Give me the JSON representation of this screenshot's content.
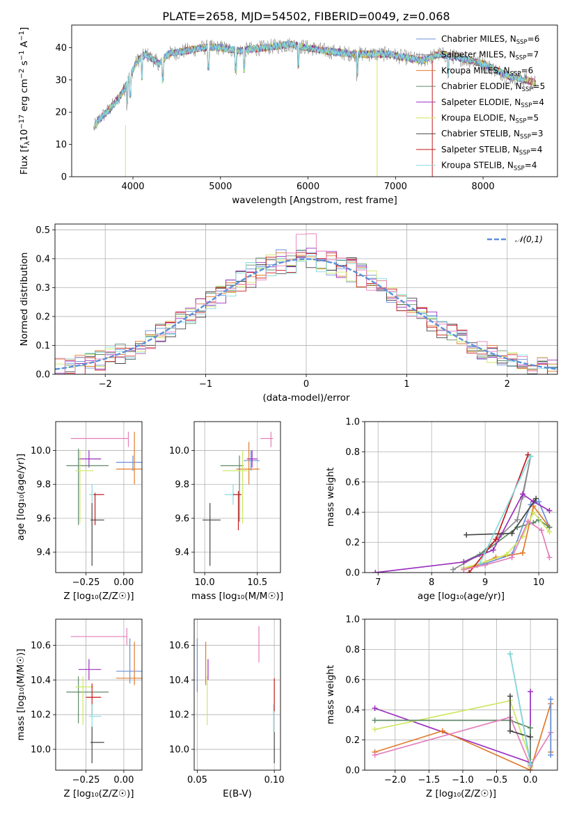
{
  "title": "PLATE=2658, MJD=54502, FIBERID=0049, z=0.068",
  "colors": {
    "Chabrier MILES": "#6a8fd8",
    "Salpeter MILES": "#8a8a8a",
    "Kroupa MILES": "#e07b2a",
    "Chabrier ELODIE": "#5f8a6a",
    "Salpeter ELODIE": "#9a2fbd",
    "Kroupa ELODIE": "#cde860",
    "Chabrier STELIB": "#444444",
    "Salpeter STELIB": "#c41a1a",
    "Kroupa STELIB": "#84dce0",
    "Gaussian": "#5b8fd9",
    "Extra": "#e37fb9"
  },
  "chart_data": [
    {
      "type": "line",
      "title": "PLATE=2658, MJD=54502, FIBERID=0049, z=0.068",
      "xlabel": "wavelength [Angstrom, rest frame]",
      "ylabel_parts": [
        "Flux [f",
        "λ",
        "10",
        "−17",
        " erg cm",
        "−2",
        " s",
        "−1",
        " A",
        "−1",
        "]"
      ],
      "xlim": [
        3300,
        8850
      ],
      "ylim": [
        0,
        47
      ],
      "xticks": [
        "4000",
        "5000",
        "6000",
        "7000",
        "8000"
      ],
      "yticks": [
        "0",
        "10",
        "20",
        "30",
        "40"
      ],
      "grid": false,
      "legend_position": "top-right",
      "spectrum_knots": [
        [
          3550,
          15
        ],
        [
          3620,
          18
        ],
        [
          3700,
          20
        ],
        [
          3800,
          23
        ],
        [
          3900,
          27
        ],
        [
          3960,
          31
        ],
        [
          4050,
          36
        ],
        [
          4150,
          38
        ],
        [
          4300,
          35
        ],
        [
          4400,
          38
        ],
        [
          4600,
          39
        ],
        [
          4800,
          40
        ],
        [
          5000,
          40
        ],
        [
          5200,
          39
        ],
        [
          5500,
          40
        ],
        [
          5800,
          41
        ],
        [
          6000,
          40
        ],
        [
          6200,
          39
        ],
        [
          6500,
          38
        ],
        [
          6700,
          38
        ],
        [
          6900,
          38
        ],
        [
          7100,
          37
        ],
        [
          7300,
          36
        ],
        [
          7500,
          38
        ],
        [
          7700,
          37
        ],
        [
          8000,
          35
        ],
        [
          8300,
          31
        ],
        [
          8500,
          30
        ],
        [
          8600,
          29
        ]
      ],
      "legend": [
        {
          "base": "Chabrier MILES, N",
          "sub": "SSP",
          "suffix": "=6"
        },
        {
          "base": "Salpeter MILES, N",
          "sub": "SSP",
          "suffix": "=7"
        },
        {
          "base": "Kroupa MILES, N",
          "sub": "SSP",
          "suffix": "=6"
        },
        {
          "base": "Chabrier ELODIE, N",
          "sub": "SSP",
          "suffix": "=5"
        },
        {
          "base": "Salpeter ELODIE, N",
          "sub": "SSP",
          "suffix": "=4"
        },
        {
          "base": "Kroupa ELODIE, N",
          "sub": "SSP",
          "suffix": "=5"
        },
        {
          "base": "Chabrier STELIB, N",
          "sub": "SSP",
          "suffix": "=3"
        },
        {
          "base": "Salpeter STELIB, N",
          "sub": "SSP",
          "suffix": "=4"
        },
        {
          "base": "Kroupa STELIB, N",
          "sub": "SSP",
          "suffix": "=4"
        }
      ]
    },
    {
      "type": "line",
      "xlabel": "(data-model)/error",
      "ylabel": "Normed distribution",
      "xlim": [
        -2.5,
        2.5
      ],
      "ylim": [
        0,
        0.52
      ],
      "xticks": [
        "−2",
        "−1",
        "0",
        "1",
        "2"
      ],
      "yticks": [
        "0.0",
        "0.1",
        "0.2",
        "0.3",
        "0.4",
        "0.5"
      ],
      "grid": true,
      "legend_position": "top-right",
      "legend": "𝒩(0,1)",
      "bin_width": 0.1,
      "series": [
        "Chabrier MILES",
        "Kroupa MILES",
        "Chabrier ELODIE",
        "Salpeter ELODIE",
        "Kroupa ELODIE",
        "Chabrier STELIB",
        "Salpeter STELIB",
        "Kroupa STELIB",
        "Salpeter MILES"
      ]
    },
    {
      "type": "scatter",
      "xlabel": "Z [log₁₀(Z/Z☉)]",
      "ylabel": "age  [log₁₀(age/yr)]",
      "xlim": [
        -0.45,
        0.12
      ],
      "ylim": [
        9.28,
        10.17
      ],
      "xticks": [
        "−0.25",
        "0.00"
      ],
      "yticks": [
        "9.4",
        "9.6",
        "9.8",
        "10.0"
      ],
      "grid": true,
      "points": [
        {
          "s": "Extra",
          "x": 0.03,
          "y": 10.07,
          "xe": [
            -0.35,
            0.03
          ],
          "ye": [
            10.02,
            10.11
          ]
        },
        {
          "s": "Chabrier MILES",
          "x": 0.06,
          "y": 9.93,
          "xe": [
            -0.05,
            0.2
          ],
          "ye": [
            9.88,
            9.97
          ]
        },
        {
          "s": "Kroupa MILES",
          "x": 0.07,
          "y": 9.89,
          "xe": [
            -0.05,
            0.2
          ],
          "ye": [
            9.8,
            10.11
          ]
        },
        {
          "s": "Salpeter ELODIE",
          "x": -0.23,
          "y": 9.95,
          "xe": [
            -0.3,
            -0.15
          ],
          "ye": [
            9.9,
            10.0
          ]
        },
        {
          "s": "Chabrier ELODIE",
          "x": -0.3,
          "y": 9.91,
          "xe": [
            -0.38,
            -0.1
          ],
          "ye": [
            9.56,
            10.01
          ]
        },
        {
          "s": "Kroupa ELODIE",
          "x": -0.29,
          "y": 9.88,
          "xe": [
            -0.32,
            -0.2
          ],
          "ye": [
            9.57,
            10.0
          ]
        },
        {
          "s": "Kroupa STELIB",
          "x": -0.21,
          "y": 9.74,
          "xe": [
            -0.23,
            -0.15
          ],
          "ye": [
            9.69,
            9.8
          ]
        },
        {
          "s": "Salpeter STELIB",
          "x": -0.19,
          "y": 9.74,
          "xe": [
            -0.2,
            -0.13
          ],
          "ye": [
            9.56,
            9.75
          ]
        },
        {
          "s": "Chabrier STELIB",
          "x": -0.21,
          "y": 9.59,
          "xe": [
            -0.22,
            -0.13
          ],
          "ye": [
            9.32,
            9.69
          ]
        }
      ]
    },
    {
      "type": "scatter",
      "xlabel": "mass [log₁₀(M/M☉)]",
      "xlim": [
        9.9,
        10.72
      ],
      "ylim": [
        9.28,
        10.17
      ],
      "xticks": [
        "10.0",
        "10.5"
      ],
      "yticks": [
        "9.4",
        "9.6",
        "9.8",
        "10.0"
      ],
      "grid": true,
      "points": [
        {
          "s": "Extra",
          "x": 10.63,
          "y": 10.07,
          "xe": [
            10.53,
            10.65
          ],
          "ye": [
            10.02,
            10.11
          ]
        },
        {
          "s": "Chabrier MILES",
          "x": 10.44,
          "y": 9.94,
          "xe": [
            10.37,
            10.52
          ],
          "ye": [
            9.88,
            10.0
          ]
        },
        {
          "s": "Kroupa MILES",
          "x": 10.42,
          "y": 9.89,
          "xe": [
            10.3,
            10.52
          ],
          "ye": [
            9.8,
            10.05
          ]
        },
        {
          "s": "Chabrier ELODIE",
          "x": 10.33,
          "y": 9.91,
          "xe": [
            10.15,
            10.37
          ],
          "ye": [
            9.58,
            9.97
          ]
        },
        {
          "s": "Kroupa ELODIE",
          "x": 10.36,
          "y": 9.88,
          "xe": [
            10.17,
            10.42
          ],
          "ye": [
            9.57,
            10.0
          ]
        },
        {
          "s": "Salpeter ELODIE",
          "x": 10.45,
          "y": 9.95,
          "xe": [
            10.4,
            10.5
          ],
          "ye": [
            9.9,
            10.0
          ]
        },
        {
          "s": "Kroupa STELIB",
          "x": 10.27,
          "y": 9.74,
          "xe": [
            10.19,
            10.31
          ],
          "ye": [
            9.68,
            9.8
          ]
        },
        {
          "s": "Salpeter STELIB",
          "x": 10.32,
          "y": 9.74,
          "xe": [
            10.27,
            10.35
          ],
          "ye": [
            9.53,
            9.76
          ]
        },
        {
          "s": "Chabrier STELIB",
          "x": 10.05,
          "y": 9.59,
          "xe": [
            9.98,
            10.15
          ],
          "ye": [
            9.32,
            9.69
          ]
        }
      ]
    },
    {
      "type": "line",
      "xlabel": "age  [log₁₀(age/yr)]",
      "ylabel": "mass weight",
      "xlim": [
        6.75,
        10.35
      ],
      "ylim": [
        0,
        1.0
      ],
      "xticks": [
        "7",
        "8",
        "9",
        "10"
      ],
      "yticks": [
        "0.0",
        "0.2",
        "0.4",
        "0.6",
        "0.8",
        "1.0"
      ],
      "grid": true,
      "series": [
        {
          "s": "Chabrier MILES",
          "x": [
            8.6,
            9.0,
            9.5,
            9.85,
            10.0,
            10.2
          ],
          "y": [
            0.03,
            0.06,
            0.12,
            0.45,
            0.47,
            0.3
          ]
        },
        {
          "s": "Salpeter MILES",
          "x": [
            8.4,
            8.9,
            9.3,
            9.6,
            9.85,
            9.7
          ],
          "y": [
            0.02,
            0.12,
            0.25,
            0.35,
            0.77,
            0.5
          ]
        },
        {
          "s": "Kroupa MILES",
          "x": [
            8.6,
            8.85,
            9.2,
            9.7,
            9.9,
            10.2
          ],
          "y": [
            0.02,
            0.05,
            0.1,
            0.13,
            0.44,
            0.3
          ]
        },
        {
          "s": "Chabrier ELODIE",
          "x": [
            8.6,
            9.0,
            9.6,
            9.9,
            10.0,
            10.2
          ],
          "y": [
            0.07,
            0.14,
            0.3,
            0.33,
            0.35,
            0.3
          ]
        },
        {
          "s": "Salpeter ELODIE",
          "x": [
            6.95,
            8.6,
            9.15,
            9.7,
            9.9,
            10.2
          ],
          "y": [
            0.0,
            0.07,
            0.15,
            0.52,
            0.47,
            0.41
          ]
        },
        {
          "s": "Kroupa ELODIE",
          "x": [
            8.6,
            9.0,
            9.4,
            9.7,
            9.9,
            10.2
          ],
          "y": [
            0.03,
            0.07,
            0.12,
            0.24,
            0.4,
            0.27
          ]
        },
        {
          "s": "Chabrier STELIB",
          "x": [
            8.65,
            9.5,
            9.95
          ],
          "y": [
            0.25,
            0.26,
            0.49
          ]
        },
        {
          "s": "Salpeter STELIB",
          "x": [
            8.7,
            9.2,
            9.8
          ],
          "y": [
            0.0,
            0.22,
            0.78
          ]
        },
        {
          "s": "Kroupa STELIB",
          "x": [
            8.9,
            9.85
          ],
          "y": [
            0.06,
            0.77
          ]
        },
        {
          "s": "Extra",
          "x": [
            8.6,
            9.0,
            9.5,
            9.8,
            10.05,
            10.2
          ],
          "y": [
            0.02,
            0.05,
            0.1,
            0.34,
            0.28,
            0.1
          ]
        }
      ]
    },
    {
      "type": "scatter",
      "xlabel": "Z [log₁₀(Z/Z☉)]",
      "ylabel": "mass [log₁₀(M/M☉)]",
      "xlim": [
        -0.45,
        0.12
      ],
      "ylim": [
        9.88,
        10.75
      ],
      "xticks": [
        "−0.25",
        "0.00"
      ],
      "yticks": [
        "10.0",
        "10.2",
        "10.4",
        "10.6"
      ],
      "grid": true,
      "points": [
        {
          "s": "Extra",
          "x": 0.02,
          "y": 10.65,
          "xe": [
            -0.35,
            0.02
          ],
          "ye": [
            10.6,
            10.7
          ]
        },
        {
          "s": "Chabrier MILES",
          "x": 0.04,
          "y": 10.45,
          "xe": [
            -0.05,
            0.2
          ],
          "ye": [
            10.38,
            10.64
          ]
        },
        {
          "s": "Kroupa MILES",
          "x": 0.07,
          "y": 10.41,
          "xe": [
            -0.05,
            0.2
          ],
          "ye": [
            10.37,
            10.62
          ]
        },
        {
          "s": "Salpeter ELODIE",
          "x": -0.23,
          "y": 10.46,
          "xe": [
            -0.3,
            -0.15
          ],
          "ye": [
            10.4,
            10.52
          ]
        },
        {
          "s": "Chabrier ELODIE",
          "x": -0.3,
          "y": 10.33,
          "xe": [
            -0.38,
            -0.1
          ],
          "ye": [
            10.15,
            10.42
          ]
        },
        {
          "s": "Kroupa ELODIE",
          "x": -0.27,
          "y": 10.36,
          "xe": [
            -0.32,
            -0.2
          ],
          "ye": [
            10.14,
            10.42
          ]
        },
        {
          "s": "Salpeter STELIB",
          "x": -0.21,
          "y": 10.3,
          "xe": [
            -0.25,
            -0.15
          ],
          "ye": [
            10.2,
            10.38
          ]
        },
        {
          "s": "Kroupa STELIB",
          "x": -0.21,
          "y": 10.19,
          "xe": [
            -0.23,
            -0.15
          ],
          "ye": [
            10.13,
            10.26
          ]
        },
        {
          "s": "Chabrier STELIB",
          "x": -0.21,
          "y": 10.04,
          "xe": [
            -0.22,
            -0.13
          ],
          "ye": [
            9.92,
            10.13
          ]
        }
      ]
    },
    {
      "type": "scatter",
      "xlabel": "E(B-V)",
      "xlim": [
        0.048,
        0.104
      ],
      "ylim": [
        9.88,
        10.75
      ],
      "xticks": [
        "0.05",
        "0.10"
      ],
      "yticks": [
        "10.0",
        "10.2",
        "10.4",
        "10.6"
      ],
      "grid": true,
      "points": [
        {
          "s": "Chabrier MILES",
          "x": 0.05,
          "y": 10.45,
          "ye": [
            10.33,
            10.64
          ]
        },
        {
          "s": "Salpeter ELODIE",
          "x": 0.057,
          "y": 10.46,
          "ye": [
            10.4,
            10.52
          ]
        },
        {
          "s": "Kroupa MILES",
          "x": 0.0555,
          "y": 10.5,
          "ye": [
            10.37,
            10.62
          ]
        },
        {
          "s": "Kroupa ELODIE",
          "x": 0.0565,
          "y": 10.33,
          "ye": [
            10.14,
            10.42
          ]
        },
        {
          "s": "Extra",
          "x": 0.09,
          "y": 10.6,
          "ye": [
            10.5,
            10.71
          ]
        },
        {
          "s": "Salpeter STELIB",
          "x": 0.1,
          "y": 10.3,
          "ye": [
            10.22,
            10.41
          ]
        },
        {
          "s": "Kroupa STELIB",
          "x": 0.0995,
          "y": 10.18,
          "ye": [
            10.1,
            10.26
          ]
        },
        {
          "s": "Chabrier STELIB",
          "x": 0.1,
          "y": 10.0,
          "ye": [
            9.92,
            10.1
          ]
        }
      ]
    },
    {
      "type": "line",
      "xlabel": "Z [log₁₀(Z/Z☉)]",
      "ylabel": "mass weight",
      "xlim": [
        -2.45,
        0.4
      ],
      "ylim": [
        0,
        1.0
      ],
      "xticks": [
        "−2.0",
        "−1.5",
        "−1.0",
        "−0.5",
        "0.0"
      ],
      "yticks": [
        "0.0",
        "0.2",
        "0.4",
        "0.6",
        "0.8",
        "1.0"
      ],
      "grid": true,
      "series": [
        {
          "s": "Salpeter ELODIE",
          "x": [
            -2.3,
            0.0,
            0.0,
            0.0
          ],
          "y": [
            0.41,
            0.05,
            0.52,
            0.0
          ]
        },
        {
          "s": "Kroupa ELODIE",
          "x": [
            -2.3,
            -0.3,
            0.0,
            0.0
          ],
          "y": [
            0.27,
            0.46,
            0.07,
            0.02
          ]
        },
        {
          "s": "Chabrier ELODIE",
          "x": [
            -2.3,
            -0.3,
            0.0,
            0.0
          ],
          "y": [
            0.33,
            0.33,
            0.28,
            0.05
          ]
        },
        {
          "s": "Kroupa MILES",
          "x": [
            -2.3,
            -1.3,
            0.0,
            0.3,
            0.3
          ],
          "y": [
            0.12,
            0.26,
            0.0,
            0.44,
            0.12
          ]
        },
        {
          "s": "Extra",
          "x": [
            -2.3,
            -0.3,
            0.0,
            0.3
          ],
          "y": [
            0.1,
            0.35,
            0.03,
            0.25
          ]
        },
        {
          "s": "Chabrier MILES",
          "x": [
            0.3,
            0.3
          ],
          "y": [
            0.47,
            0.1
          ]
        },
        {
          "s": "Chabrier STELIB",
          "x": [
            -0.3,
            -0.3,
            0.0
          ],
          "y": [
            0.49,
            0.26,
            0.22
          ]
        },
        {
          "s": "Salpeter MILES",
          "x": [
            -0.3,
            0.0
          ],
          "y": [
            0.77,
            0.05
          ]
        },
        {
          "s": "Kroupa STELIB",
          "x": [
            -0.3,
            0.0
          ],
          "y": [
            0.77,
            0.04
          ]
        }
      ]
    }
  ]
}
